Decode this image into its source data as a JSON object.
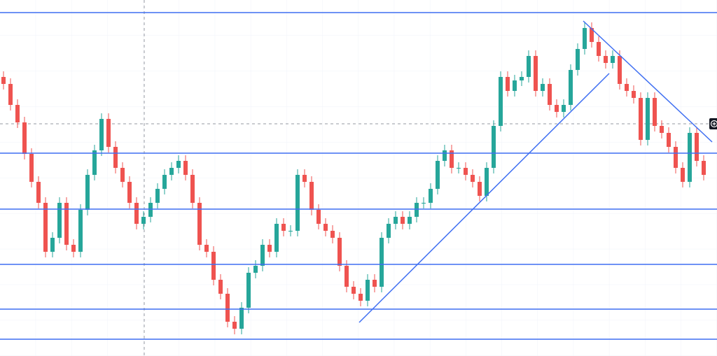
{
  "chart_data": {
    "type": "candlestick",
    "open": [
      399,
      389,
      359,
      334,
      289,
      249,
      219,
      149,
      169,
      219,
      159,
      149,
      209,
      259,
      294,
      339,
      299,
      269,
      249,
      219,
      189,
      199,
      219,
      239,
      259,
      269,
      279,
      259,
      219,
      159,
      149,
      109,
      89,
      49,
      39,
      69,
      119,
      129,
      159,
      149,
      189,
      179,
      179,
      259,
      249,
      209,
      189,
      179,
      169,
      129,
      99,
      89,
      79,
      109,
      99,
      169,
      189,
      199,
      189,
      199,
      219,
      219,
      239,
      279,
      294,
      269,
      269,
      259,
      249,
      229,
      269,
      329,
      399,
      379,
      394,
      399,
      429,
      379,
      389,
      359,
      349,
      359,
      409,
      439,
      469,
      449,
      429,
      419,
      429,
      389,
      379,
      369,
      309,
      369,
      329,
      319,
      299,
      269,
      249,
      319,
      279
    ],
    "high": [
      407,
      397,
      367,
      342,
      297,
      257,
      227,
      177,
      227,
      227,
      167,
      217,
      267,
      302,
      347,
      347,
      307,
      277,
      257,
      227,
      207,
      227,
      247,
      267,
      277,
      287,
      287,
      267,
      227,
      167,
      157,
      117,
      97,
      57,
      77,
      127,
      137,
      167,
      167,
      197,
      197,
      187,
      267,
      267,
      257,
      217,
      197,
      187,
      177,
      137,
      107,
      97,
      117,
      117,
      177,
      197,
      207,
      207,
      207,
      227,
      227,
      247,
      287,
      302,
      302,
      277,
      277,
      267,
      257,
      277,
      337,
      407,
      407,
      402,
      407,
      437,
      437,
      397,
      397,
      367,
      367,
      417,
      447,
      477,
      477,
      457,
      437,
      437,
      437,
      397,
      387,
      377,
      377,
      377,
      337,
      327,
      307,
      277,
      327,
      327,
      287
    ],
    "low": [
      381,
      351,
      326,
      281,
      241,
      211,
      141,
      141,
      161,
      151,
      141,
      141,
      201,
      251,
      286,
      291,
      261,
      241,
      211,
      181,
      181,
      191,
      211,
      231,
      251,
      261,
      251,
      211,
      151,
      141,
      101,
      81,
      41,
      31,
      31,
      61,
      111,
      121,
      141,
      141,
      171,
      171,
      171,
      241,
      201,
      181,
      171,
      161,
      121,
      91,
      81,
      71,
      71,
      91,
      91,
      161,
      181,
      181,
      181,
      191,
      211,
      211,
      231,
      271,
      261,
      261,
      251,
      241,
      221,
      221,
      261,
      321,
      371,
      371,
      386,
      391,
      371,
      371,
      351,
      341,
      341,
      351,
      401,
      431,
      441,
      421,
      411,
      411,
      381,
      371,
      361,
      301,
      301,
      321,
      311,
      291,
      261,
      241,
      241,
      271,
      251
    ],
    "close": [
      389,
      359,
      334,
      289,
      249,
      219,
      149,
      169,
      219,
      159,
      149,
      209,
      259,
      294,
      339,
      299,
      269,
      249,
      219,
      189,
      199,
      219,
      239,
      259,
      269,
      279,
      259,
      219,
      159,
      149,
      109,
      89,
      49,
      39,
      69,
      119,
      129,
      159,
      149,
      189,
      179,
      179,
      259,
      249,
      209,
      189,
      179,
      169,
      129,
      99,
      89,
      79,
      109,
      99,
      169,
      189,
      199,
      189,
      199,
      219,
      219,
      239,
      279,
      294,
      269,
      269,
      259,
      249,
      229,
      269,
      329,
      399,
      379,
      394,
      399,
      429,
      379,
      389,
      359,
      349,
      359,
      409,
      439,
      469,
      449,
      429,
      419,
      429,
      389,
      379,
      369,
      309,
      369,
      329,
      319,
      299,
      269,
      249,
      319,
      279,
      259
    ],
    "up_color": "#26a69a",
    "down_color": "#ef5350",
    "xlim": [
      -0.5,
      101.9
    ],
    "ylim": [
      0,
      509
    ],
    "levels": [
      491,
      290,
      210,
      131,
      67,
      24
    ],
    "line_color": "#3f6ff2",
    "trendlines": [
      {
        "x": [
          50.8,
          86.5
        ],
        "y": [
          48,
          404
        ]
      },
      {
        "x": [
          82.8,
          101.2
        ],
        "y": [
          479,
          306
        ]
      }
    ],
    "crosshair": {
      "x": 20.1,
      "y": 332
    }
  }
}
